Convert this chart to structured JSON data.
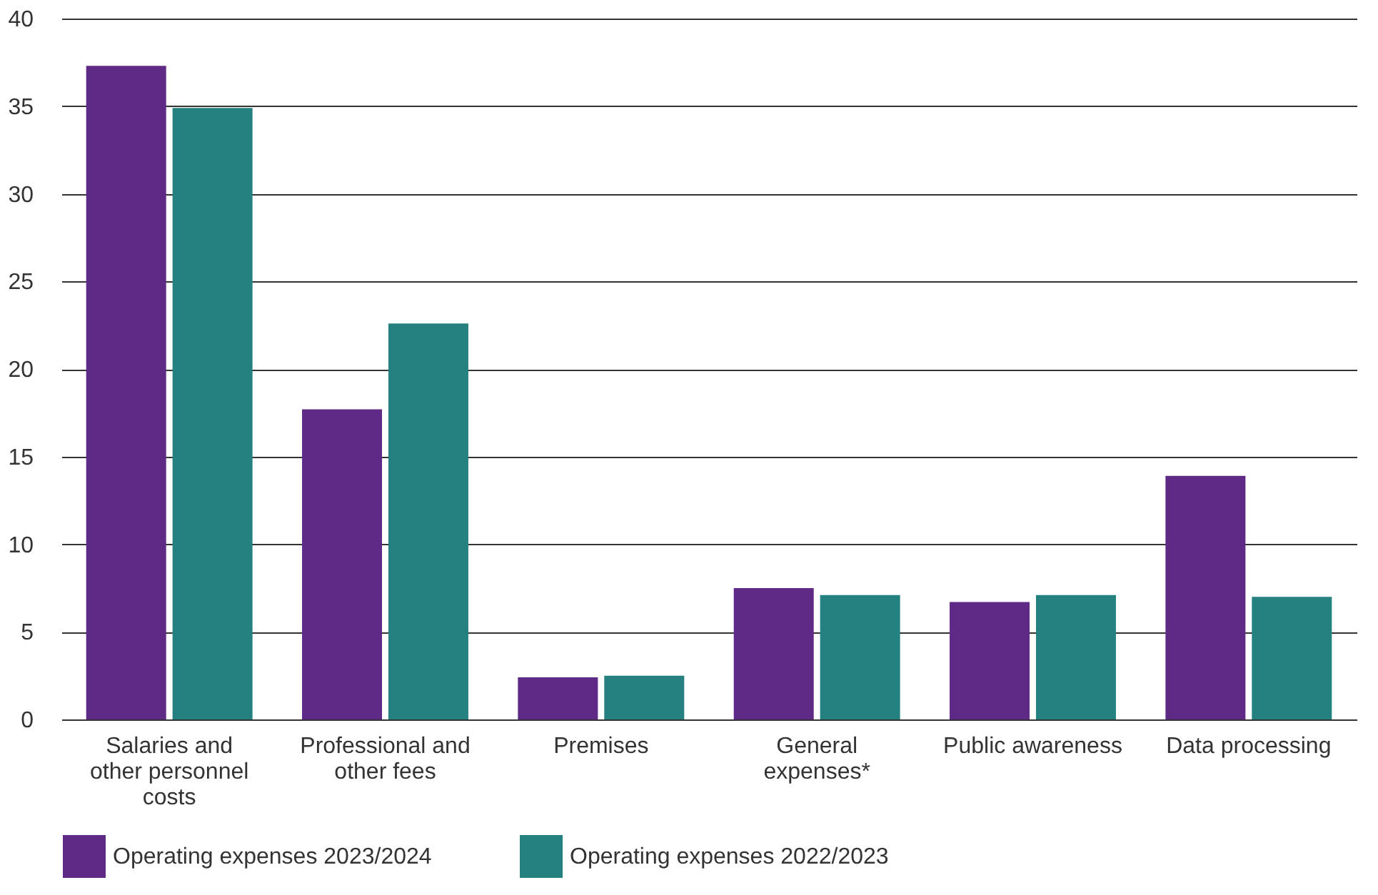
{
  "chart_data": {
    "type": "bar",
    "categories": [
      "Salaries and other personnel costs",
      "Professional and other fees",
      "Premises",
      "General expenses*",
      "Public awareness",
      "Data processing"
    ],
    "series": [
      {
        "name": "Operating expenses 2023/2024",
        "color": "#5f2a86",
        "values": [
          37.3,
          17.7,
          2.4,
          7.5,
          6.7,
          13.9
        ]
      },
      {
        "name": "Operating expenses 2022/2023",
        "color": "#258180",
        "values": [
          34.9,
          22.6,
          2.5,
          7.1,
          7.1,
          7.0
        ]
      }
    ],
    "ylim": [
      0,
      40
    ],
    "yticks": [
      0,
      5,
      10,
      15,
      20,
      25,
      30,
      35,
      40
    ],
    "grid": "y",
    "legend": "bottom left"
  }
}
